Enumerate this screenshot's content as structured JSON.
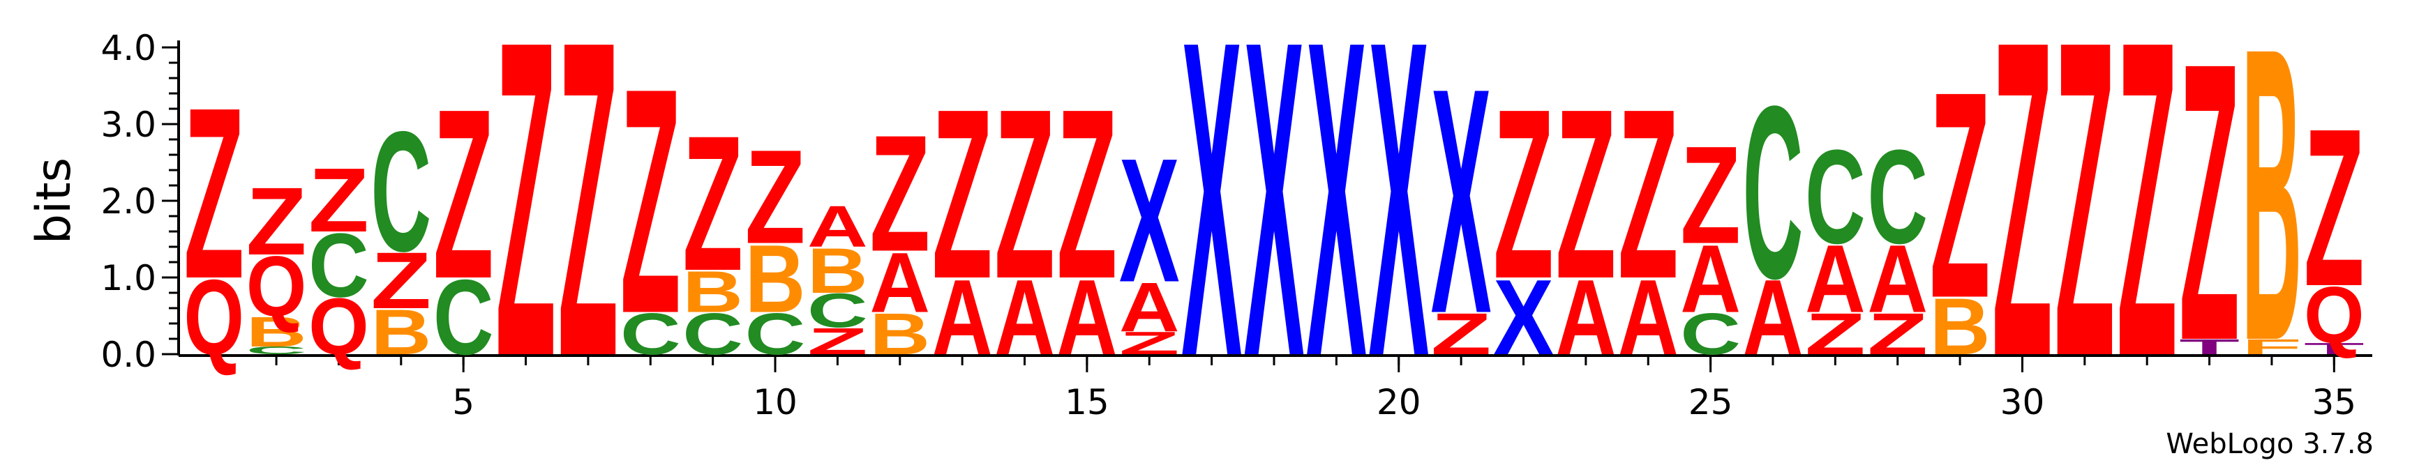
{
  "chart_data": {
    "type": "sequence_logo",
    "ylabel": "bits",
    "ylim": [
      0,
      4.0
    ],
    "y_ticks": [
      "0.0",
      "1.0",
      "2.0",
      "3.0",
      "4.0"
    ],
    "x_ticks": [
      "5",
      "10",
      "15",
      "20",
      "25",
      "30",
      "35"
    ],
    "x_tick_values": [
      5,
      10,
      15,
      20,
      25,
      30,
      35
    ],
    "positions": 35,
    "footer": "WebLogo 3.7.8",
    "colors": {
      "Z": "#ff0000",
      "Q": "#ff0000",
      "A": "#ff0000",
      "C": "#228b22",
      "B": "#ff8c00",
      "X": "#0000ff",
      "T": "#800080"
    },
    "stacks": [
      {
        "pos": 1,
        "letters": [
          [
            "Q",
            1.0
          ],
          [
            "Z",
            2.28
          ]
        ]
      },
      {
        "pos": 2,
        "letters": [
          [
            "C",
            0.1
          ],
          [
            "B",
            0.4
          ],
          [
            "Q",
            0.8
          ],
          [
            "Z",
            0.9
          ]
        ]
      },
      {
        "pos": 3,
        "letters": [
          [
            "Q",
            0.75
          ],
          [
            "C",
            0.85
          ],
          [
            "Z",
            0.85
          ]
        ]
      },
      {
        "pos": 4,
        "letters": [
          [
            "B",
            0.6
          ],
          [
            "Z",
            0.75
          ],
          [
            "C",
            1.6
          ]
        ]
      },
      {
        "pos": 5,
        "letters": [
          [
            "C",
            1.0
          ],
          [
            "Z",
            2.26
          ]
        ]
      },
      {
        "pos": 6,
        "letters": [
          [
            "Z",
            4.2
          ]
        ]
      },
      {
        "pos": 7,
        "letters": [
          [
            "Z",
            4.2
          ]
        ]
      },
      {
        "pos": 8,
        "letters": [
          [
            "C",
            0.55
          ],
          [
            "Z",
            3.0
          ]
        ]
      },
      {
        "pos": 9,
        "letters": [
          [
            "C",
            0.55
          ],
          [
            "B",
            0.55
          ],
          [
            "Z",
            1.8
          ]
        ]
      },
      {
        "pos": 10,
        "letters": [
          [
            "C",
            0.55
          ],
          [
            "B",
            0.9
          ],
          [
            "Z",
            1.25
          ]
        ]
      },
      {
        "pos": 11,
        "letters": [
          [
            "Z",
            0.35
          ],
          [
            "C",
            0.45
          ],
          [
            "B",
            0.6
          ],
          [
            "A",
            0.55
          ]
        ]
      },
      {
        "pos": 12,
        "letters": [
          [
            "B",
            0.55
          ],
          [
            "A",
            0.8
          ],
          [
            "Z",
            1.55
          ]
        ]
      },
      {
        "pos": 13,
        "letters": [
          [
            "A",
            1.0
          ],
          [
            "Z",
            2.26
          ]
        ]
      },
      {
        "pos": 14,
        "letters": [
          [
            "A",
            1.0
          ],
          [
            "Z",
            2.26
          ]
        ]
      },
      {
        "pos": 15,
        "letters": [
          [
            "A",
            1.0
          ],
          [
            "Z",
            2.26
          ]
        ]
      },
      {
        "pos": 16,
        "letters": [
          [
            "Z",
            0.3
          ],
          [
            "A",
            0.65
          ],
          [
            "X",
            1.65
          ]
        ]
      },
      {
        "pos": 17,
        "letters": [
          [
            "X",
            4.2
          ]
        ]
      },
      {
        "pos": 18,
        "letters": [
          [
            "X",
            4.2
          ]
        ]
      },
      {
        "pos": 19,
        "letters": [
          [
            "X",
            4.2
          ]
        ]
      },
      {
        "pos": 20,
        "letters": [
          [
            "X",
            4.2
          ]
        ]
      },
      {
        "pos": 21,
        "letters": [
          [
            "Z",
            0.55
          ],
          [
            "X",
            3.0
          ]
        ]
      },
      {
        "pos": 22,
        "letters": [
          [
            "X",
            1.0
          ],
          [
            "Z",
            2.26
          ]
        ]
      },
      {
        "pos": 23,
        "letters": [
          [
            "A",
            1.0
          ],
          [
            "Z",
            2.26
          ]
        ]
      },
      {
        "pos": 24,
        "letters": [
          [
            "A",
            1.0
          ],
          [
            "Z",
            2.26
          ]
        ]
      },
      {
        "pos": 25,
        "letters": [
          [
            "C",
            0.55
          ],
          [
            "A",
            0.9
          ],
          [
            "Z",
            1.3
          ]
        ]
      },
      {
        "pos": 26,
        "letters": [
          [
            "A",
            1.0
          ],
          [
            "C",
            2.3
          ]
        ]
      },
      {
        "pos": 27,
        "letters": [
          [
            "Z",
            0.55
          ],
          [
            "A",
            0.9
          ],
          [
            "C",
            1.25
          ]
        ]
      },
      {
        "pos": 28,
        "letters": [
          [
            "Z",
            0.55
          ],
          [
            "A",
            0.9
          ],
          [
            "C",
            1.25
          ]
        ]
      },
      {
        "pos": 29,
        "letters": [
          [
            "B",
            0.75
          ],
          [
            "Z",
            2.75
          ]
        ]
      },
      {
        "pos": 30,
        "letters": [
          [
            "Z",
            4.2
          ]
        ]
      },
      {
        "pos": 31,
        "letters": [
          [
            "Z",
            4.2
          ]
        ]
      },
      {
        "pos": 32,
        "letters": [
          [
            "Z",
            4.2
          ]
        ]
      },
      {
        "pos": 33,
        "letters": [
          [
            "T",
            0.2
          ],
          [
            "Z",
            3.7
          ]
        ]
      },
      {
        "pos": 34,
        "letters": [
          [
            "F",
            0.2
          ],
          [
            "B",
            3.9
          ]
        ]
      },
      {
        "pos": 35,
        "letters": [
          [
            "T",
            0.15
          ],
          [
            "Q",
            0.75
          ],
          [
            "Z",
            2.1
          ]
        ]
      }
    ]
  }
}
